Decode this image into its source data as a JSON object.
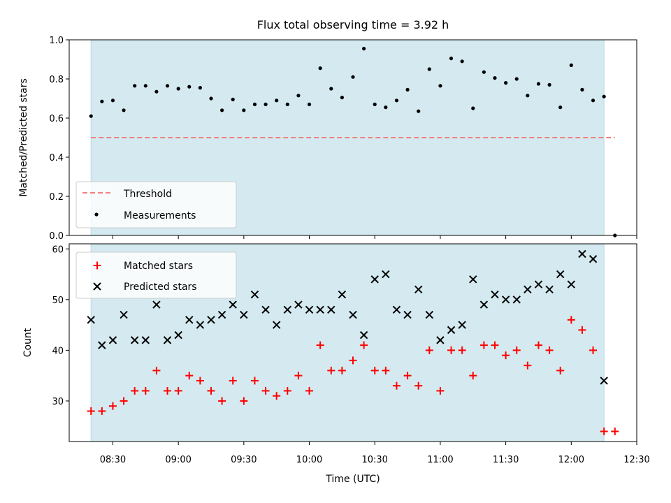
{
  "chart_data": [
    {
      "type": "scatter",
      "title": "Flux total observing time = 3.92 h",
      "ylabel": "Matched/Predicted stars",
      "ylim": [
        0.0,
        1.0
      ],
      "yticks": [
        "0.0",
        "0.2",
        "0.4",
        "0.6",
        "0.8",
        "1.0"
      ],
      "shaded_interval": [
        "08:20",
        "12:15"
      ],
      "shade_color": "#d4eaf0",
      "series": [
        {
          "name": "Threshold",
          "style": "dashed-line",
          "color": "#f08080",
          "x": [
            "08:20",
            "12:20"
          ],
          "y": [
            0.5,
            0.5
          ]
        },
        {
          "name": "Measurements",
          "style": "dot",
          "color": "#000000",
          "x": [
            "08:20",
            "08:25",
            "08:30",
            "08:35",
            "08:40",
            "08:45",
            "08:50",
            "08:55",
            "09:00",
            "09:05",
            "09:10",
            "09:15",
            "09:20",
            "09:25",
            "09:30",
            "09:35",
            "09:40",
            "09:45",
            "09:50",
            "09:55",
            "10:00",
            "10:05",
            "10:10",
            "10:15",
            "10:20",
            "10:25",
            "10:30",
            "10:35",
            "10:40",
            "10:45",
            "10:50",
            "10:55",
            "11:00",
            "11:05",
            "11:10",
            "11:15",
            "11:20",
            "11:25",
            "11:30",
            "11:35",
            "11:40",
            "11:45",
            "11:50",
            "11:55",
            "12:00",
            "12:05",
            "12:10",
            "12:15",
            "12:20"
          ],
          "y": [
            0.61,
            0.685,
            0.69,
            0.64,
            0.765,
            0.765,
            0.735,
            0.765,
            0.75,
            0.76,
            0.755,
            0.7,
            0.64,
            0.695,
            0.64,
            0.67,
            0.67,
            0.69,
            0.67,
            0.715,
            0.67,
            0.855,
            0.75,
            0.705,
            0.81,
            0.955,
            0.67,
            0.655,
            0.69,
            0.745,
            0.635,
            0.85,
            0.765,
            0.905,
            0.89,
            0.65,
            0.835,
            0.805,
            0.78,
            0.8,
            0.715,
            0.775,
            0.77,
            0.655,
            0.87,
            0.745,
            0.69,
            0.71,
            0.0
          ]
        }
      ],
      "legend": {
        "position": "lower-left",
        "entries": [
          "Threshold",
          "Measurements"
        ]
      }
    },
    {
      "type": "scatter",
      "xlabel": "Time (UTC)",
      "ylabel": "Count",
      "ylim": [
        22,
        61
      ],
      "yticks": [
        "30",
        "40",
        "50",
        "60"
      ],
      "xlim": [
        "08:10",
        "12:30"
      ],
      "xticks": [
        "08:30",
        "09:00",
        "09:30",
        "10:00",
        "10:30",
        "11:00",
        "11:30",
        "12:00",
        "12:30"
      ],
      "shaded_interval": [
        "08:20",
        "12:15"
      ],
      "shade_color": "#d4eaf0",
      "series": [
        {
          "name": "Matched stars",
          "marker": "plus",
          "color": "#ff0000",
          "x": [
            "08:20",
            "08:25",
            "08:30",
            "08:35",
            "08:40",
            "08:45",
            "08:50",
            "08:55",
            "09:00",
            "09:05",
            "09:10",
            "09:15",
            "09:20",
            "09:25",
            "09:30",
            "09:35",
            "09:40",
            "09:45",
            "09:50",
            "09:55",
            "10:00",
            "10:05",
            "10:10",
            "10:15",
            "10:20",
            "10:25",
            "10:30",
            "10:35",
            "10:40",
            "10:45",
            "10:50",
            "10:55",
            "11:00",
            "11:05",
            "11:10",
            "11:15",
            "11:20",
            "11:25",
            "11:30",
            "11:35",
            "11:40",
            "11:45",
            "11:50",
            "11:55",
            "12:00",
            "12:05",
            "12:10",
            "12:15",
            "12:20"
          ],
          "y": [
            28,
            28,
            29,
            30,
            32,
            32,
            36,
            32,
            32,
            35,
            34,
            32,
            30,
            34,
            30,
            34,
            32,
            31,
            32,
            35,
            32,
            41,
            36,
            36,
            38,
            41,
            36,
            36,
            33,
            35,
            33,
            40,
            32,
            40,
            40,
            35,
            41,
            41,
            39,
            40,
            37,
            41,
            40,
            36,
            46,
            44,
            40,
            24,
            24
          ]
        },
        {
          "name": "Predicted stars",
          "marker": "x",
          "color": "#000000",
          "x": [
            "08:20",
            "08:25",
            "08:30",
            "08:35",
            "08:40",
            "08:45",
            "08:50",
            "08:55",
            "09:00",
            "09:05",
            "09:10",
            "09:15",
            "09:20",
            "09:25",
            "09:30",
            "09:35",
            "09:40",
            "09:45",
            "09:50",
            "09:55",
            "10:00",
            "10:05",
            "10:10",
            "10:15",
            "10:20",
            "10:25",
            "10:30",
            "10:35",
            "10:40",
            "10:45",
            "10:50",
            "10:55",
            "11:00",
            "11:05",
            "11:10",
            "11:15",
            "11:20",
            "11:25",
            "11:30",
            "11:35",
            "11:40",
            "11:45",
            "11:50",
            "11:55",
            "12:00",
            "12:05",
            "12:10",
            "12:15"
          ],
          "y": [
            46,
            41,
            42,
            47,
            42,
            42,
            49,
            42,
            43,
            46,
            45,
            46,
            47,
            49,
            47,
            51,
            48,
            45,
            48,
            49,
            48,
            48,
            48,
            51,
            47,
            43,
            54,
            55,
            48,
            47,
            52,
            47,
            42,
            44,
            45,
            54,
            49,
            51,
            50,
            50,
            52,
            53,
            52,
            55,
            53,
            59,
            58,
            34
          ]
        }
      ],
      "legend": {
        "position": "upper-left",
        "entries": [
          "Matched stars",
          "Predicted stars"
        ]
      }
    }
  ]
}
